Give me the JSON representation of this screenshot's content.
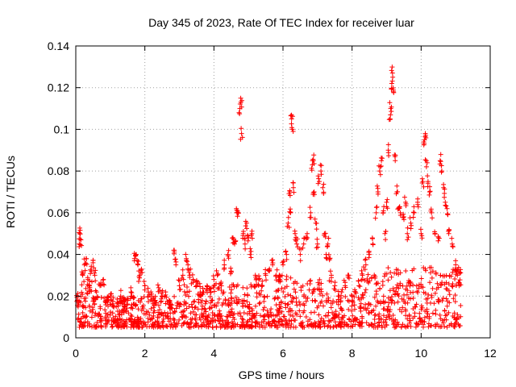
{
  "chart_data": {
    "type": "scatter",
    "title": "Day 345 of 2023, Rate Of TEC Index for receiver luar",
    "xlabel": "GPS time / hours",
    "ylabel": "ROTI / TECUs",
    "xlim": [
      0,
      12
    ],
    "ylim": [
      0,
      0.14
    ],
    "xticks": [
      0,
      2,
      4,
      6,
      8,
      10,
      12
    ],
    "xtick_labels": [
      "0",
      "2",
      "4",
      "6",
      "8",
      "10",
      "12"
    ],
    "yticks": [
      0,
      0.02,
      0.04,
      0.06,
      0.08,
      0.1,
      0.12,
      0.14
    ],
    "ytick_labels": [
      "0",
      "0.02",
      "0.04",
      "0.06",
      "0.08",
      "0.1",
      "0.12",
      "0.14"
    ],
    "grid": true,
    "marker": "+",
    "color": "#ff0000",
    "series": [
      {
        "name": "ROTI",
        "points": [
          [
            0.05,
            0.018
          ],
          [
            0.1,
            0.045
          ],
          [
            0.12,
            0.05
          ],
          [
            0.15,
            0.047
          ],
          [
            0.2,
            0.03
          ],
          [
            0.25,
            0.035
          ],
          [
            0.3,
            0.038
          ],
          [
            0.35,
            0.028
          ],
          [
            0.4,
            0.025
          ],
          [
            0.45,
            0.032
          ],
          [
            0.5,
            0.036
          ],
          [
            0.55,
            0.03
          ],
          [
            0.6,
            0.022
          ],
          [
            0.7,
            0.025
          ],
          [
            0.8,
            0.028
          ],
          [
            0.9,
            0.018
          ],
          [
            1.0,
            0.02
          ],
          [
            1.1,
            0.015
          ],
          [
            1.2,
            0.017
          ],
          [
            1.3,
            0.02
          ],
          [
            1.4,
            0.016
          ],
          [
            1.5,
            0.018
          ],
          [
            1.6,
            0.022
          ],
          [
            1.7,
            0.038
          ],
          [
            1.75,
            0.04
          ],
          [
            1.8,
            0.035
          ],
          [
            1.85,
            0.03
          ],
          [
            1.9,
            0.033
          ],
          [
            2.0,
            0.025
          ],
          [
            2.1,
            0.022
          ],
          [
            2.2,
            0.02
          ],
          [
            2.3,
            0.018
          ],
          [
            2.4,
            0.024
          ],
          [
            2.5,
            0.02
          ],
          [
            2.6,
            0.022
          ],
          [
            2.7,
            0.018
          ],
          [
            2.85,
            0.042
          ],
          [
            2.9,
            0.035
          ],
          [
            3.0,
            0.025
          ],
          [
            3.1,
            0.03
          ],
          [
            3.2,
            0.038
          ],
          [
            3.25,
            0.035
          ],
          [
            3.3,
            0.03
          ],
          [
            3.4,
            0.028
          ],
          [
            3.5,
            0.025
          ],
          [
            3.6,
            0.02
          ],
          [
            3.7,
            0.022
          ],
          [
            3.8,
            0.025
          ],
          [
            3.9,
            0.022
          ],
          [
            4.0,
            0.028
          ],
          [
            4.1,
            0.03
          ],
          [
            4.2,
            0.026
          ],
          [
            4.3,
            0.035
          ],
          [
            4.4,
            0.04
          ],
          [
            4.5,
            0.032
          ],
          [
            4.55,
            0.048
          ],
          [
            4.6,
            0.045
          ],
          [
            4.65,
            0.062
          ],
          [
            4.7,
            0.06
          ],
          [
            4.75,
            0.11
          ],
          [
            4.78,
            0.113
          ],
          [
            4.8,
            0.098
          ],
          [
            4.85,
            0.05
          ],
          [
            4.9,
            0.045
          ],
          [
            4.95,
            0.055
          ],
          [
            5.0,
            0.048
          ],
          [
            5.05,
            0.04
          ],
          [
            5.1,
            0.05
          ],
          [
            5.2,
            0.03
          ],
          [
            5.3,
            0.028
          ],
          [
            5.4,
            0.025
          ],
          [
            5.5,
            0.03
          ],
          [
            5.6,
            0.032
          ],
          [
            5.7,
            0.035
          ],
          [
            5.8,
            0.03
          ],
          [
            5.9,
            0.028
          ],
          [
            6.0,
            0.035
          ],
          [
            6.1,
            0.04
          ],
          [
            6.15,
            0.055
          ],
          [
            6.2,
            0.07
          ],
          [
            6.22,
            0.06
          ],
          [
            6.25,
            0.105
          ],
          [
            6.27,
            0.1
          ],
          [
            6.3,
            0.072
          ],
          [
            6.35,
            0.05
          ],
          [
            6.4,
            0.045
          ],
          [
            6.5,
            0.04
          ],
          [
            6.6,
            0.045
          ],
          [
            6.7,
            0.05
          ],
          [
            6.8,
            0.06
          ],
          [
            6.85,
            0.083
          ],
          [
            6.88,
            0.085
          ],
          [
            6.9,
            0.07
          ],
          [
            6.95,
            0.055
          ],
          [
            7.0,
            0.045
          ],
          [
            7.05,
            0.075
          ],
          [
            7.1,
            0.08
          ],
          [
            7.15,
            0.072
          ],
          [
            7.2,
            0.05
          ],
          [
            7.25,
            0.04
          ],
          [
            7.3,
            0.045
          ],
          [
            7.35,
            0.038
          ],
          [
            7.4,
            0.03
          ],
          [
            7.5,
            0.025
          ],
          [
            7.6,
            0.02
          ],
          [
            7.7,
            0.022
          ],
          [
            7.8,
            0.025
          ],
          [
            7.9,
            0.03
          ],
          [
            8.0,
            0.02
          ],
          [
            8.1,
            0.022
          ],
          [
            8.2,
            0.025
          ],
          [
            8.3,
            0.03
          ],
          [
            8.4,
            0.035
          ],
          [
            8.5,
            0.04
          ],
          [
            8.6,
            0.045
          ],
          [
            8.7,
            0.06
          ],
          [
            8.75,
            0.07
          ],
          [
            8.8,
            0.08
          ],
          [
            8.85,
            0.085
          ],
          [
            8.9,
            0.06
          ],
          [
            8.95,
            0.05
          ],
          [
            9.0,
            0.065
          ],
          [
            9.05,
            0.09
          ],
          [
            9.1,
            0.105
          ],
          [
            9.12,
            0.11
          ],
          [
            9.15,
            0.122
          ],
          [
            9.17,
            0.127
          ],
          [
            9.2,
            0.118
          ],
          [
            9.25,
            0.085
          ],
          [
            9.3,
            0.07
          ],
          [
            9.35,
            0.062
          ],
          [
            9.4,
            0.06
          ],
          [
            9.5,
            0.058
          ],
          [
            9.55,
            0.065
          ],
          [
            9.6,
            0.05
          ],
          [
            9.7,
            0.055
          ],
          [
            9.8,
            0.06
          ],
          [
            9.9,
            0.065
          ],
          [
            10.0,
            0.05
          ],
          [
            10.05,
            0.075
          ],
          [
            10.1,
            0.095
          ],
          [
            10.12,
            0.098
          ],
          [
            10.15,
            0.085
          ],
          [
            10.2,
            0.075
          ],
          [
            10.25,
            0.07
          ],
          [
            10.3,
            0.06
          ],
          [
            10.4,
            0.05
          ],
          [
            10.5,
            0.048
          ],
          [
            10.55,
            0.085
          ],
          [
            10.6,
            0.08
          ],
          [
            10.65,
            0.072
          ],
          [
            10.7,
            0.065
          ],
          [
            10.75,
            0.062
          ],
          [
            10.8,
            0.05
          ],
          [
            10.9,
            0.045
          ],
          [
            11.0,
            0.035
          ],
          [
            11.05,
            0.03
          ],
          [
            11.1,
            0.025
          ]
        ]
      }
    ],
    "dense_band": {
      "note": "additional dense points mostly between 0.003 and 0.025 across 0 to 11.15 hours",
      "x_range": [
        0.0,
        11.15
      ],
      "y_range": [
        0.003,
        0.025
      ]
    }
  }
}
